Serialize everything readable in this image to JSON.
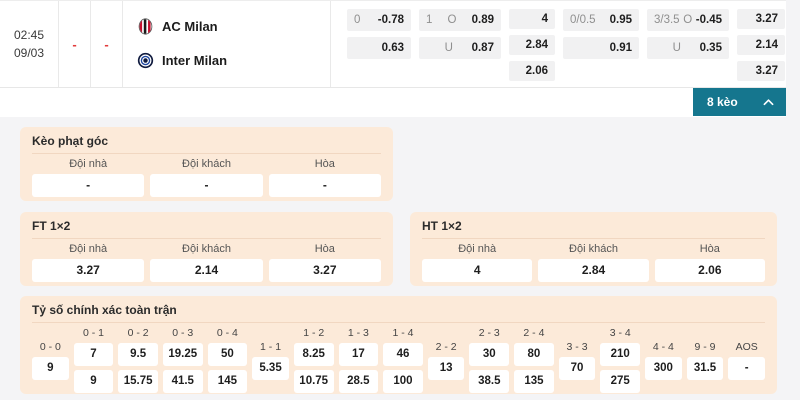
{
  "colors": {
    "accent_teal": "#15768e",
    "panel_bg": "#fcead9",
    "score_dash_red": "#e23b3b"
  },
  "header": {
    "time": "02:45",
    "date": "09/03",
    "home_score": "-",
    "away_score": "-",
    "teams": [
      {
        "name": "AC Milan",
        "logo_icon": "ac-milan-crest"
      },
      {
        "name": "Inter Milan",
        "logo_icon": "inter-milan-crest"
      }
    ],
    "odds_groups": [
      {
        "rows": [
          [
            {
              "t": "0",
              "m": true
            },
            {
              "t": "-0.78"
            }
          ],
          [
            {
              "t": "0.63"
            }
          ]
        ]
      },
      {
        "rows": [
          [
            {
              "t": "1",
              "m": true
            },
            {
              "t": "O",
              "m": true
            },
            {
              "t": "0.89"
            }
          ],
          [
            {
              "t": "",
              "m": true
            },
            {
              "t": "U",
              "m": true
            },
            {
              "t": "0.87"
            }
          ]
        ]
      },
      {
        "rows": [
          [
            {
              "t": "4"
            }
          ],
          [
            {
              "t": "2.84"
            }
          ],
          [
            {
              "t": "2.06"
            }
          ]
        ]
      },
      {
        "rows": [
          [
            {
              "t": "0/0.5",
              "m": true
            },
            {
              "t": "0.95"
            }
          ],
          [
            {
              "t": "0.91"
            }
          ]
        ]
      },
      {
        "rows": [
          [
            {
              "t": "3/3.5",
              "m": true
            },
            {
              "t": "O",
              "m": true
            },
            {
              "t": "-0.45"
            }
          ],
          [
            {
              "t": "",
              "m": true
            },
            {
              "t": "U",
              "m": true
            },
            {
              "t": "0.35"
            }
          ]
        ]
      },
      {
        "rows": [
          [
            {
              "t": "3.27"
            }
          ],
          [
            {
              "t": "2.14"
            }
          ],
          [
            {
              "t": "3.27"
            }
          ]
        ]
      }
    ],
    "toggle": {
      "label": "8 kèo",
      "icon": "chevron-up"
    }
  },
  "panels": {
    "corner": {
      "title": "Kèo phạt góc",
      "columns": [
        "Đội nhà",
        "Đội khách",
        "Hòa"
      ],
      "values": [
        "-",
        "-",
        "-"
      ]
    },
    "ft": {
      "title": "FT 1×2",
      "columns": [
        "Đội nhà",
        "Đội khách",
        "Hòa"
      ],
      "values": [
        "3.27",
        "2.14",
        "3.27"
      ]
    },
    "ht": {
      "title": "HT 1×2",
      "columns": [
        "Đội nhà",
        "Đội khách",
        "Hòa"
      ],
      "values": [
        "4",
        "2.84",
        "2.06"
      ]
    },
    "correct_score": {
      "title": "Tỷ số chính xác toàn trận",
      "columns": [
        {
          "label": "0 - 0",
          "values": [
            "9"
          ]
        },
        {
          "label": "0 - 1",
          "values": [
            "7",
            "9"
          ]
        },
        {
          "label": "0 - 2",
          "values": [
            "9.5",
            "15.75"
          ]
        },
        {
          "label": "0 - 3",
          "values": [
            "19.25",
            "41.5"
          ]
        },
        {
          "label": "0 - 4",
          "values": [
            "50",
            "145"
          ]
        },
        {
          "label": "1 - 1",
          "values": [
            "5.35"
          ]
        },
        {
          "label": "1 - 2",
          "values": [
            "8.25",
            "10.75"
          ]
        },
        {
          "label": "1 - 3",
          "values": [
            "17",
            "28.5"
          ]
        },
        {
          "label": "1 - 4",
          "values": [
            "46",
            "100"
          ]
        },
        {
          "label": "2 - 2",
          "values": [
            "13"
          ]
        },
        {
          "label": "2 - 3",
          "values": [
            "30",
            "38.5"
          ]
        },
        {
          "label": "2 - 4",
          "values": [
            "80",
            "135"
          ]
        },
        {
          "label": "3 - 3",
          "values": [
            "70"
          ]
        },
        {
          "label": "3 - 4",
          "values": [
            "210",
            "275"
          ]
        },
        {
          "label": "4 - 4",
          "values": [
            "300"
          ]
        },
        {
          "label": "9 - 9",
          "values": [
            "31.5"
          ]
        },
        {
          "label": "AOS",
          "values": [
            "-"
          ]
        }
      ]
    }
  }
}
